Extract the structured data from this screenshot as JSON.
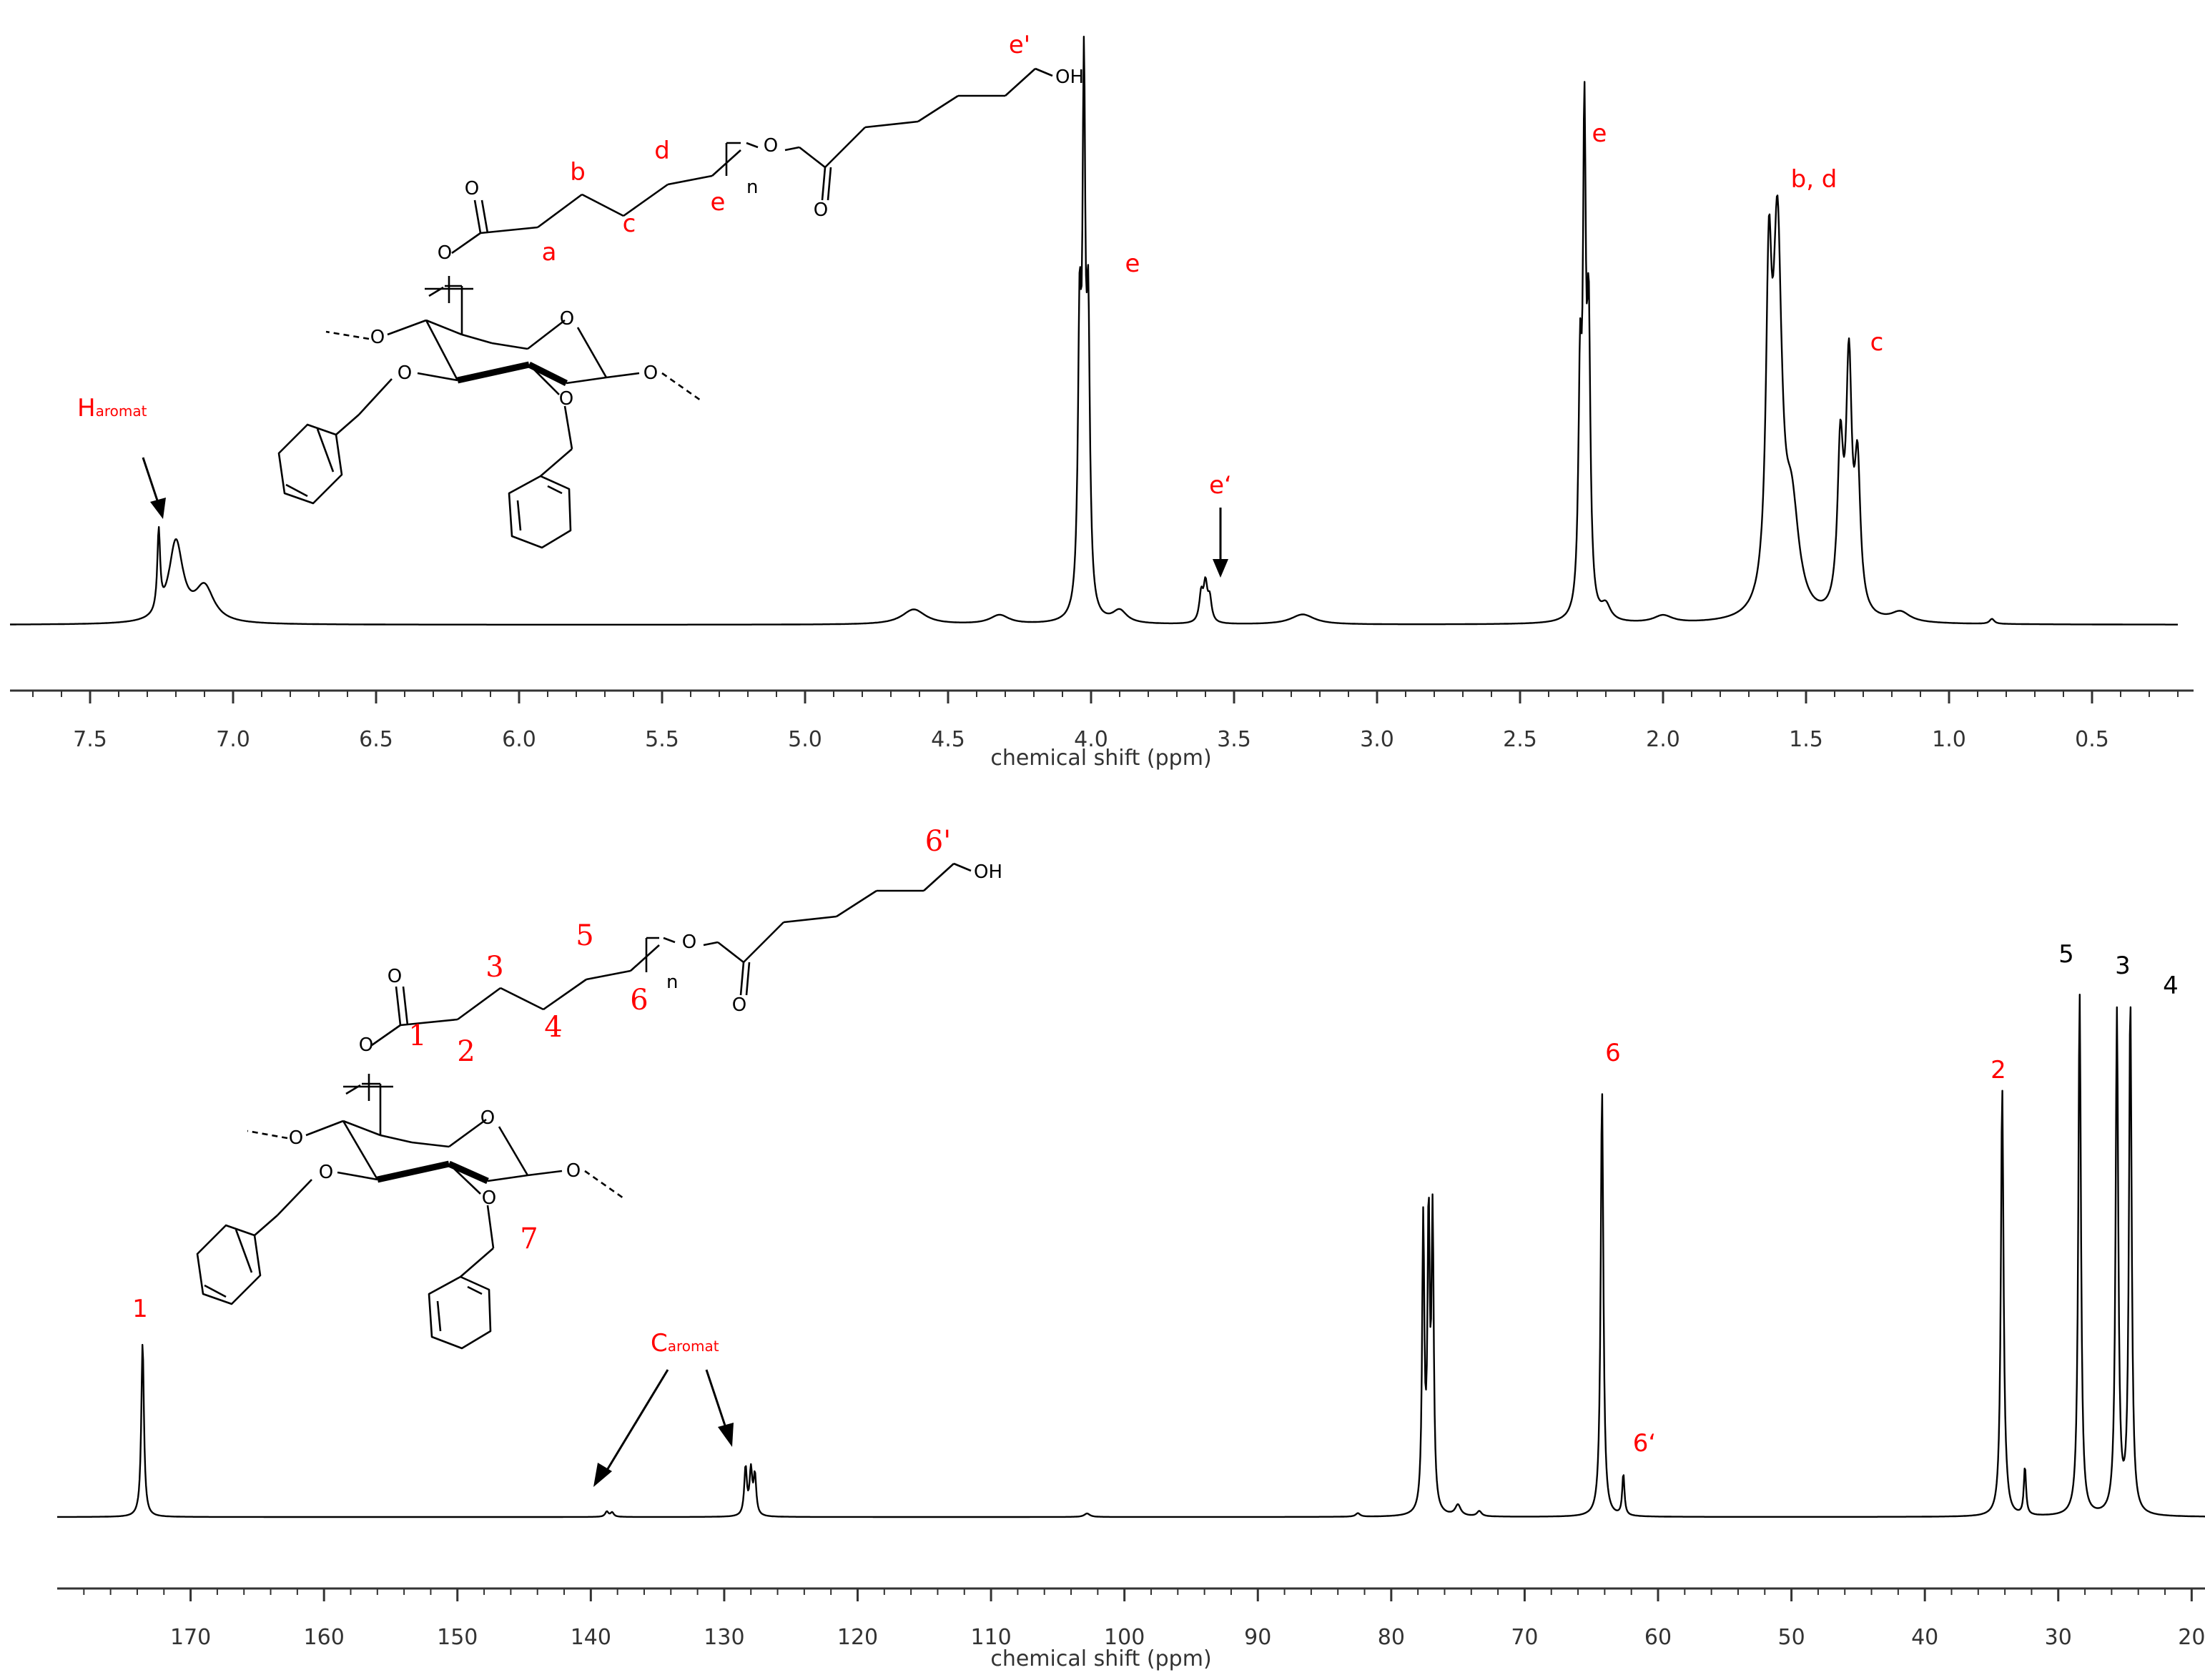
{
  "chart_data": [
    {
      "type": "line",
      "xlabel": "chemical shift (ppm)",
      "ylabel": "",
      "xlim": [
        7.78,
        0.2
      ],
      "x_reversed": true,
      "grid": false,
      "tick_values": [
        7.5,
        7.0,
        6.5,
        6.0,
        5.5,
        5.0,
        4.5,
        4.0,
        3.5,
        3.0,
        2.5,
        2.0,
        1.5,
        1.0,
        0.5
      ],
      "tick_labels": [
        "7.5",
        "7.0",
        "6.5",
        "6.0",
        "5.5",
        "5.0",
        "4.5",
        "4.0",
        "3.5",
        "3.0",
        "2.5",
        "2.0",
        "1.5",
        "1.0",
        "0.5"
      ],
      "peaks": [
        {
          "x": 7.26,
          "height": 0.16,
          "width": 0.006
        },
        {
          "x": 7.2,
          "height": 0.16,
          "width": 0.03
        },
        {
          "x": 7.1,
          "height": 0.07,
          "width": 0.04
        },
        {
          "x": 4.62,
          "height": 0.03,
          "width": 0.05
        },
        {
          "x": 4.32,
          "height": 0.018,
          "width": 0.04
        },
        {
          "x": 4.04,
          "height": 0.55,
          "width": 0.007
        },
        {
          "x": 4.025,
          "height": 0.98,
          "width": 0.006
        },
        {
          "x": 4.01,
          "height": 0.55,
          "width": 0.007
        },
        {
          "x": 3.9,
          "height": 0.025,
          "width": 0.03
        },
        {
          "x": 3.615,
          "height": 0.055,
          "width": 0.008
        },
        {
          "x": 3.6,
          "height": 0.072,
          "width": 0.008
        },
        {
          "x": 3.585,
          "height": 0.045,
          "width": 0.008
        },
        {
          "x": 3.26,
          "height": 0.02,
          "width": 0.05
        },
        {
          "x": 2.29,
          "height": 0.45,
          "width": 0.007
        },
        {
          "x": 2.275,
          "height": 0.91,
          "width": 0.006
        },
        {
          "x": 2.26,
          "height": 0.55,
          "width": 0.007
        },
        {
          "x": 2.2,
          "height": 0.03,
          "width": 0.02
        },
        {
          "x": 2.0,
          "height": 0.015,
          "width": 0.04
        },
        {
          "x": 1.63,
          "height": 0.6,
          "width": 0.012
        },
        {
          "x": 1.6,
          "height": 0.72,
          "width": 0.018
        },
        {
          "x": 1.55,
          "height": 0.2,
          "width": 0.03
        },
        {
          "x": 1.38,
          "height": 0.32,
          "width": 0.012
        },
        {
          "x": 1.35,
          "height": 0.48,
          "width": 0.012
        },
        {
          "x": 1.32,
          "height": 0.28,
          "width": 0.012
        },
        {
          "x": 1.17,
          "height": 0.02,
          "width": 0.04
        },
        {
          "x": 0.85,
          "height": 0.01,
          "width": 0.01
        }
      ],
      "annotations": [
        {
          "text": "e",
          "x": 3.88,
          "color": "#ff0000"
        },
        {
          "text": "e",
          "x": 2.27,
          "color": "#ff0000"
        },
        {
          "text": "b, d",
          "x": 1.6,
          "color": "#ff0000"
        },
        {
          "text": "c",
          "x": 1.35,
          "color": "#ff0000"
        },
        {
          "text": "e‘",
          "x": 3.6,
          "color": "#ff0000"
        }
      ],
      "aromatic_label": {
        "main": "H",
        "sub": "aromat"
      }
    },
    {
      "type": "line",
      "xlabel": "chemical shift (ppm)",
      "ylabel": "",
      "xlim": [
        180,
        19
      ],
      "x_reversed": true,
      "grid": false,
      "tick_values": [
        170,
        160,
        150,
        140,
        130,
        120,
        110,
        100,
        90,
        80,
        70,
        60,
        50,
        40,
        30,
        20
      ],
      "tick_labels": [
        "170",
        "160",
        "150",
        "140",
        "130",
        "120",
        "110",
        "100",
        "90",
        "80",
        "70",
        "60",
        "50",
        "40",
        "30",
        "20"
      ],
      "peaks": [
        {
          "x": 173.6,
          "height": 0.4,
          "width": 0.12
        },
        {
          "x": 138.8,
          "height": 0.012,
          "width": 0.15
        },
        {
          "x": 138.4,
          "height": 0.01,
          "width": 0.15
        },
        {
          "x": 128.4,
          "height": 0.11,
          "width": 0.12
        },
        {
          "x": 128.0,
          "height": 0.1,
          "width": 0.12
        },
        {
          "x": 127.7,
          "height": 0.09,
          "width": 0.12
        },
        {
          "x": 102.8,
          "height": 0.008,
          "width": 0.25
        },
        {
          "x": 82.5,
          "height": 0.008,
          "width": 0.2
        },
        {
          "x": 77.6,
          "height": 0.66,
          "width": 0.1
        },
        {
          "x": 77.2,
          "height": 0.66,
          "width": 0.1
        },
        {
          "x": 76.9,
          "height": 0.66,
          "width": 0.1
        },
        {
          "x": 75.0,
          "height": 0.025,
          "width": 0.25
        },
        {
          "x": 73.4,
          "height": 0.012,
          "width": 0.2
        },
        {
          "x": 64.2,
          "height": 0.98,
          "width": 0.12
        },
        {
          "x": 62.6,
          "height": 0.095,
          "width": 0.1
        },
        {
          "x": 34.2,
          "height": 0.98,
          "width": 0.12
        },
        {
          "x": 33.9,
          "height": 0.02,
          "width": 0.2
        },
        {
          "x": 32.5,
          "height": 0.11,
          "width": 0.1
        },
        {
          "x": 28.4,
          "height": 1.2,
          "width": 0.12
        },
        {
          "x": 25.6,
          "height": 1.15,
          "width": 0.12
        },
        {
          "x": 24.6,
          "height": 1.18,
          "width": 0.12
        }
      ],
      "annotations": [
        {
          "text": "1",
          "x": 173.6,
          "color": "#ff0000"
        },
        {
          "text": "6",
          "x": 63.3,
          "color": "#ff0000"
        },
        {
          "text": "6‘",
          "x": 60.7,
          "color": "#ff0000"
        },
        {
          "text": "2",
          "x": 34.5,
          "color": "#ff0000"
        },
        {
          "text": "5",
          "x": 29.0,
          "color": "#000000"
        },
        {
          "text": "3",
          "x": 25.3,
          "color": "#000000"
        },
        {
          "text": "4",
          "x": 21.8,
          "color": "#000000"
        }
      ],
      "aromatic_label": {
        "main": "C",
        "sub": "aromat"
      }
    }
  ],
  "structures": [
    {
      "red_labels": [
        "e'",
        "a",
        "b",
        "c",
        "d",
        "e"
      ],
      "black_labels": [
        "OH",
        "n",
        "O"
      ]
    },
    {
      "red_labels": [
        "6'",
        "1",
        "2",
        "3",
        "4",
        "5",
        "6",
        "7"
      ],
      "black_labels": [
        "OH",
        "n",
        "O"
      ]
    }
  ],
  "colors": {
    "spectrum": "#000000",
    "annotation": "#ff0000",
    "axis": "#333333"
  }
}
